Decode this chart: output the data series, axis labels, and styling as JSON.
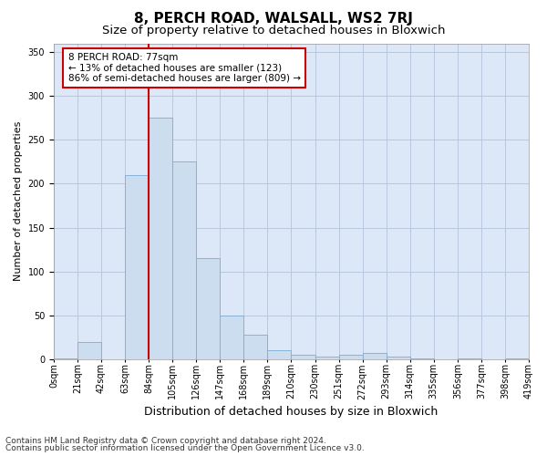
{
  "title": "8, PERCH ROAD, WALSALL, WS2 7RJ",
  "subtitle": "Size of property relative to detached houses in Bloxwich",
  "xlabel": "Distribution of detached houses by size in Bloxwich",
  "ylabel": "Number of detached properties",
  "footer_line1": "Contains HM Land Registry data © Crown copyright and database right 2024.",
  "footer_line2": "Contains public sector information licensed under the Open Government Licence v3.0.",
  "bin_labels": [
    "0sqm",
    "21sqm",
    "42sqm",
    "63sqm",
    "84sqm",
    "105sqm",
    "126sqm",
    "147sqm",
    "168sqm",
    "189sqm",
    "210sqm",
    "230sqm",
    "251sqm",
    "272sqm",
    "293sqm",
    "314sqm",
    "335sqm",
    "356sqm",
    "377sqm",
    "398sqm",
    "419sqm"
  ],
  "bar_values": [
    1,
    20,
    0,
    210,
    275,
    225,
    115,
    50,
    28,
    10,
    5,
    3,
    5,
    7,
    3,
    1,
    0,
    1,
    0,
    1
  ],
  "bar_color": "#ccddf0",
  "bar_edge_color": "#7badd4",
  "ylim": [
    0,
    360
  ],
  "yticks": [
    0,
    50,
    100,
    150,
    200,
    250,
    300,
    350
  ],
  "vline_bin_edge": 4,
  "annotation_text": "8 PERCH ROAD: 77sqm\n← 13% of detached houses are smaller (123)\n86% of semi-detached houses are larger (809) →",
  "annotation_box_color": "#ffffff",
  "annotation_box_edge": "#cc0000",
  "vline_color": "#cc0000",
  "grid_color": "#b8c8de",
  "plot_bg_color": "#dce8f8",
  "title_fontsize": 11,
  "subtitle_fontsize": 9.5,
  "xlabel_fontsize": 9,
  "ylabel_fontsize": 8,
  "tick_fontsize": 7,
  "annotation_fontsize": 7.5,
  "footer_fontsize": 6.5
}
